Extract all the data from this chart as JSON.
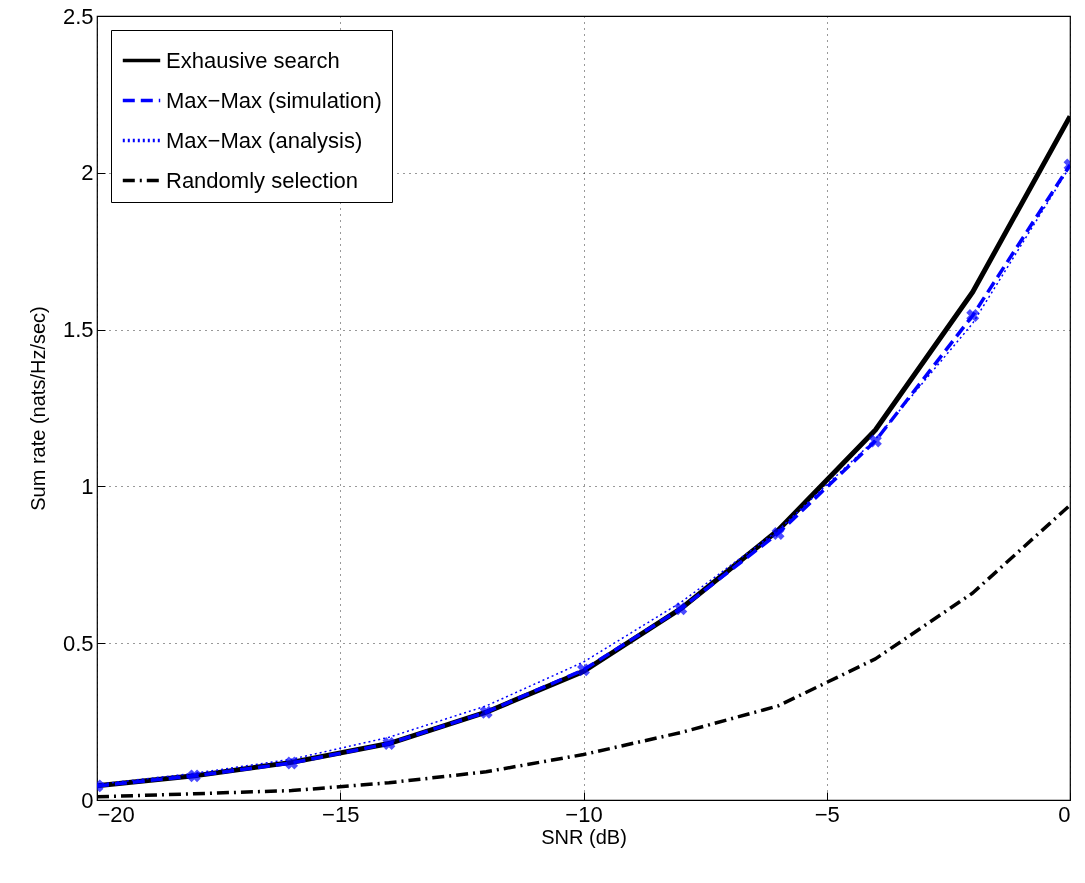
{
  "chart_data": {
    "type": "line",
    "xlabel": "SNR (dB)",
    "ylabel": "Sum rate (nats/Hz/sec)",
    "x": [
      -20,
      -18,
      -16,
      -14,
      -12,
      -10,
      -8,
      -6,
      -4,
      -2,
      0
    ],
    "series": [
      {
        "name": "Exhausive search",
        "color": "#000000",
        "line_style": "solid",
        "marker": "none",
        "values": [
          0.045,
          0.077,
          0.12,
          0.18,
          0.28,
          0.41,
          0.61,
          0.86,
          1.18,
          1.62,
          2.18
        ]
      },
      {
        "name": "Max−Max (simulation)",
        "color": "#0000ff",
        "line_style": "dashed",
        "marker": "cross",
        "values": [
          0.045,
          0.077,
          0.118,
          0.18,
          0.28,
          0.415,
          0.61,
          0.85,
          1.145,
          1.545,
          2.025
        ]
      },
      {
        "name": "Max−Max (analysis)",
        "color": "#0000ff",
        "line_style": "dotted",
        "marker": "none",
        "values": [
          0.05,
          0.085,
          0.13,
          0.2,
          0.3,
          0.44,
          0.63,
          0.86,
          1.15,
          1.52,
          2.02
        ]
      },
      {
        "name": "Randomly selection",
        "color": "#000000",
        "line_style": "dashdot",
        "marker": "none",
        "values": [
          0.01,
          0.02,
          0.03,
          0.055,
          0.09,
          0.145,
          0.215,
          0.3,
          0.45,
          0.66,
          0.94
        ]
      }
    ],
    "xlim": [
      -20,
      0
    ],
    "xticks": [
      {
        "value": -20,
        "label": "−20"
      },
      {
        "value": -15,
        "label": "−15"
      },
      {
        "value": -10,
        "label": "−10"
      },
      {
        "value": -5,
        "label": "−5"
      },
      0
    ],
    "ylim": [
      0,
      2.5
    ],
    "yticks": [
      0,
      0.5,
      1,
      1.5,
      2,
      2.5
    ],
    "grid": true,
    "legend": "top left"
  }
}
